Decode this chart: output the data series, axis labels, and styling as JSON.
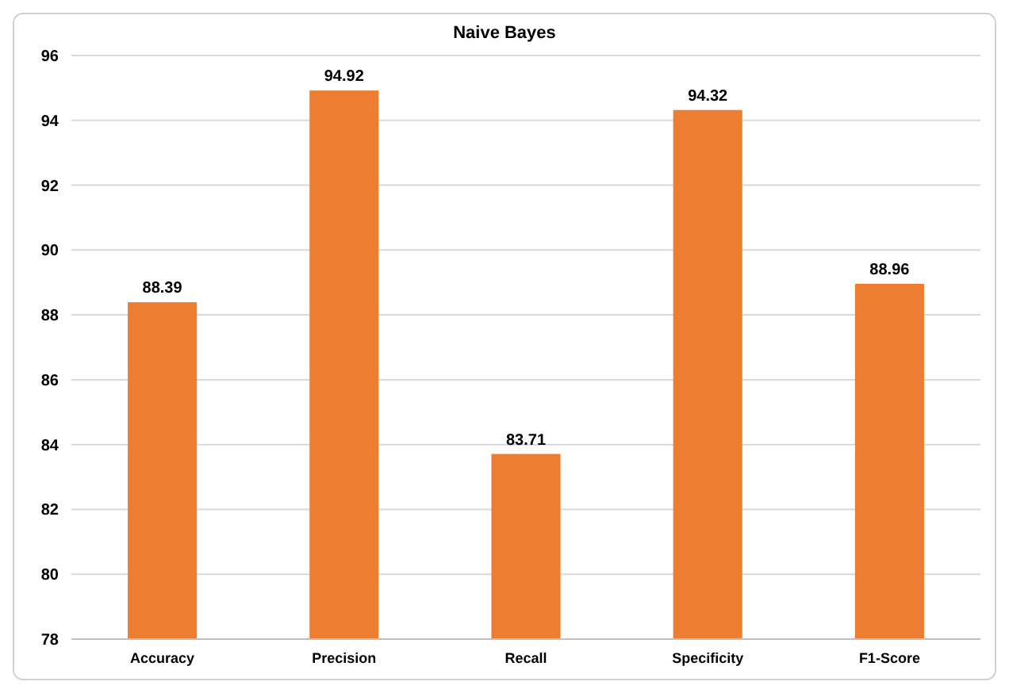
{
  "chart_data": {
    "type": "bar",
    "title": "Naive Bayes",
    "categories": [
      "Accuracy",
      "Precision",
      "Recall",
      "Specificity",
      "F1-Score"
    ],
    "values": [
      88.39,
      94.92,
      83.71,
      94.32,
      88.96
    ],
    "color": "#ed7d31",
    "ylim": [
      78,
      96
    ],
    "yticks": [
      78,
      80,
      82,
      84,
      86,
      88,
      90,
      92,
      94,
      96
    ],
    "grid": "y",
    "data_labels": true
  }
}
